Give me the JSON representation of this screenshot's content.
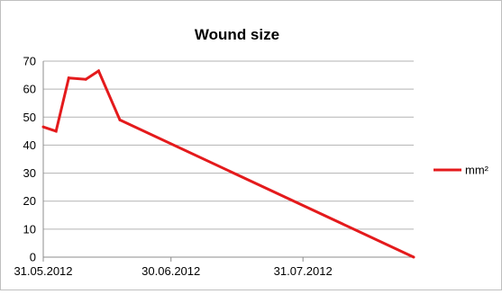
{
  "chart_data": {
    "type": "line",
    "title": "Wound size",
    "xlabel": "",
    "ylabel": "",
    "x_tick_labels": [
      "31.05.2012",
      "30.06.2012",
      "31.07.2012"
    ],
    "x_tick_dates": [
      "2012-05-31",
      "2012-06-30",
      "2012-07-31"
    ],
    "y_ticks": [
      0,
      10,
      20,
      30,
      40,
      50,
      60,
      70
    ],
    "ylim": [
      0,
      70
    ],
    "xlim": [
      "2012-05-31",
      "2012-08-26"
    ],
    "grid": true,
    "legend_position": "right",
    "series": [
      {
        "name": "mm²",
        "color": "#e41a1c",
        "points": [
          {
            "x": "2012-05-31",
            "y": 46.5
          },
          {
            "x": "2012-06-03",
            "y": 45
          },
          {
            "x": "2012-06-06",
            "y": 64
          },
          {
            "x": "2012-06-10",
            "y": 63.5
          },
          {
            "x": "2012-06-13",
            "y": 66.5
          },
          {
            "x": "2012-06-18",
            "y": 49
          },
          {
            "x": "2012-08-26",
            "y": 0
          }
        ]
      }
    ]
  }
}
